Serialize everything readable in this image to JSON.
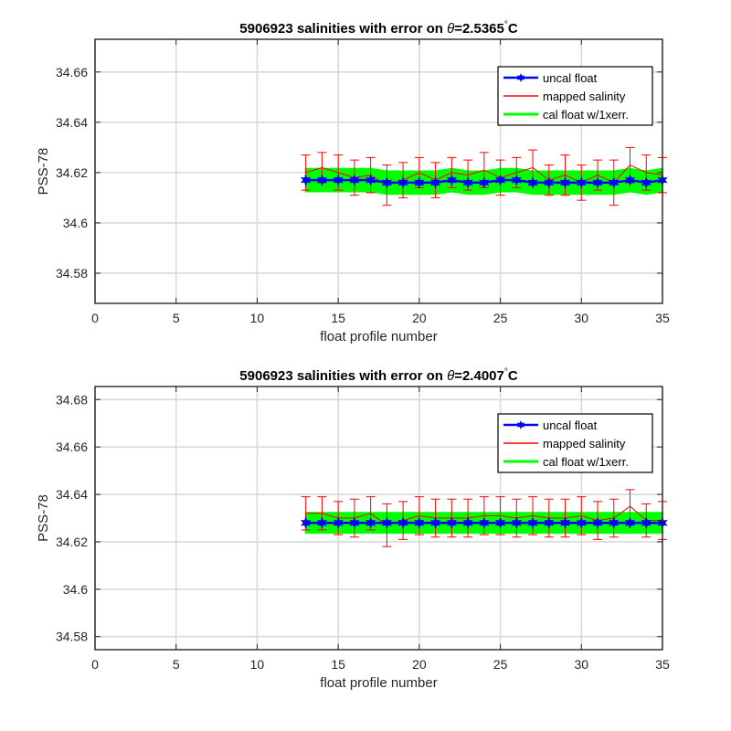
{
  "colors": {
    "uncal": "#0000ff",
    "mapped": "#ff0000",
    "cal_band": "#00ff00",
    "grid": "#d9d9d9",
    "axis": "#262626"
  },
  "chart_data": [
    {
      "type": "line",
      "title_prefix": "5906923 salinities with error on ",
      "title_theta": "θ",
      "title_value": "=2.5365",
      "title_degree": "°",
      "title_unit": "C",
      "xlabel": "float profile number",
      "ylabel": "PSS-78",
      "xlim": [
        0,
        35
      ],
      "ylim": [
        34.568,
        34.673
      ],
      "xticks": [
        0,
        5,
        10,
        15,
        20,
        25,
        30,
        35
      ],
      "yticks": [
        34.58,
        34.6,
        34.62,
        34.64,
        34.66
      ],
      "ytick_labels": [
        "34.58",
        "34.6",
        "34.62",
        "34.64",
        "34.66"
      ],
      "grid": true,
      "legend_position": "top-right",
      "legend": [
        "uncal float",
        "mapped salinity",
        "cal float w/1xerr."
      ],
      "x": [
        13,
        14,
        15,
        16,
        17,
        18,
        19,
        20,
        21,
        22,
        23,
        24,
        25,
        26,
        27,
        28,
        29,
        30,
        31,
        32,
        33,
        34,
        35
      ],
      "series": [
        {
          "name": "uncal float",
          "values": [
            34.617,
            34.617,
            34.617,
            34.617,
            34.617,
            34.616,
            34.616,
            34.616,
            34.616,
            34.617,
            34.616,
            34.616,
            34.617,
            34.617,
            34.616,
            34.616,
            34.616,
            34.616,
            34.616,
            34.616,
            34.617,
            34.616,
            34.617
          ]
        },
        {
          "name": "mapped salinity",
          "values": [
            34.62,
            34.622,
            34.62,
            34.618,
            34.619,
            34.615,
            34.617,
            34.62,
            34.617,
            34.62,
            34.619,
            34.621,
            34.618,
            34.62,
            34.622,
            34.617,
            34.619,
            34.616,
            34.619,
            34.616,
            34.623,
            34.62,
            34.619
          ],
          "errors": [
            0.007,
            0.006,
            0.007,
            0.007,
            0.007,
            0.008,
            0.007,
            0.006,
            0.007,
            0.006,
            0.006,
            0.007,
            0.007,
            0.006,
            0.007,
            0.006,
            0.008,
            0.007,
            0.006,
            0.009,
            0.007,
            0.007,
            0.007
          ]
        },
        {
          "name": "cal float w/1xerr.",
          "values": [
            34.617,
            34.617,
            34.617,
            34.617,
            34.617,
            34.616,
            34.616,
            34.616,
            34.616,
            34.617,
            34.616,
            34.616,
            34.617,
            34.617,
            34.616,
            34.616,
            34.616,
            34.616,
            34.616,
            34.616,
            34.617,
            34.616,
            34.617
          ],
          "errors": [
            0.0045,
            0.0045,
            0.0045,
            0.0045,
            0.0045,
            0.0045,
            0.0045,
            0.0045,
            0.0045,
            0.0045,
            0.0045,
            0.0045,
            0.0045,
            0.0045,
            0.0045,
            0.0045,
            0.0045,
            0.0045,
            0.0045,
            0.0045,
            0.0045,
            0.0045,
            0.0045
          ]
        }
      ]
    },
    {
      "type": "line",
      "title_prefix": "5906923 salinities with error on ",
      "title_theta": "θ",
      "title_value": "=2.4007",
      "title_degree": "°",
      "title_unit": "C",
      "xlabel": "float profile number",
      "ylabel": "PSS-78",
      "xlim": [
        0,
        35
      ],
      "ylim": [
        34.5745,
        34.6855
      ],
      "xticks": [
        0,
        5,
        10,
        15,
        20,
        25,
        30,
        35
      ],
      "yticks": [
        34.58,
        34.6,
        34.62,
        34.64,
        34.66,
        34.68
      ],
      "ytick_labels": [
        "34.58",
        "34.6",
        "34.62",
        "34.64",
        "34.66",
        "34.68"
      ],
      "grid": true,
      "legend_position": "top-right",
      "legend": [
        "uncal float",
        "mapped salinity",
        "cal float w/1xerr."
      ],
      "x": [
        13,
        14,
        15,
        16,
        17,
        18,
        19,
        20,
        21,
        22,
        23,
        24,
        25,
        26,
        27,
        28,
        29,
        30,
        31,
        32,
        33,
        34,
        35
      ],
      "series": [
        {
          "name": "uncal float",
          "values": [
            34.628,
            34.628,
            34.628,
            34.628,
            34.628,
            34.628,
            34.628,
            34.628,
            34.628,
            34.628,
            34.628,
            34.628,
            34.628,
            34.628,
            34.628,
            34.628,
            34.628,
            34.628,
            34.628,
            34.628,
            34.628,
            34.628,
            34.628
          ]
        },
        {
          "name": "mapped salinity",
          "values": [
            34.632,
            34.632,
            34.63,
            34.63,
            34.632,
            34.627,
            34.629,
            34.631,
            34.63,
            34.63,
            34.63,
            34.631,
            34.631,
            34.63,
            34.631,
            34.63,
            34.63,
            34.631,
            34.629,
            34.63,
            34.635,
            34.629,
            34.629
          ],
          "errors": [
            0.007,
            0.007,
            0.007,
            0.008,
            0.007,
            0.009,
            0.008,
            0.008,
            0.008,
            0.008,
            0.008,
            0.008,
            0.008,
            0.008,
            0.008,
            0.008,
            0.008,
            0.008,
            0.008,
            0.008,
            0.007,
            0.007,
            0.008
          ]
        },
        {
          "name": "cal float w/1xerr.",
          "values": [
            34.628,
            34.628,
            34.628,
            34.628,
            34.628,
            34.628,
            34.628,
            34.628,
            34.628,
            34.628,
            34.628,
            34.628,
            34.628,
            34.628,
            34.628,
            34.628,
            34.628,
            34.628,
            34.628,
            34.628,
            34.628,
            34.628,
            34.628
          ],
          "errors": [
            0.0042,
            0.0042,
            0.0042,
            0.0042,
            0.0042,
            0.0042,
            0.0042,
            0.0042,
            0.0042,
            0.0042,
            0.0042,
            0.0042,
            0.0042,
            0.0042,
            0.0042,
            0.0042,
            0.0042,
            0.0042,
            0.0042,
            0.0042,
            0.0042,
            0.0042,
            0.0042
          ]
        }
      ]
    }
  ]
}
